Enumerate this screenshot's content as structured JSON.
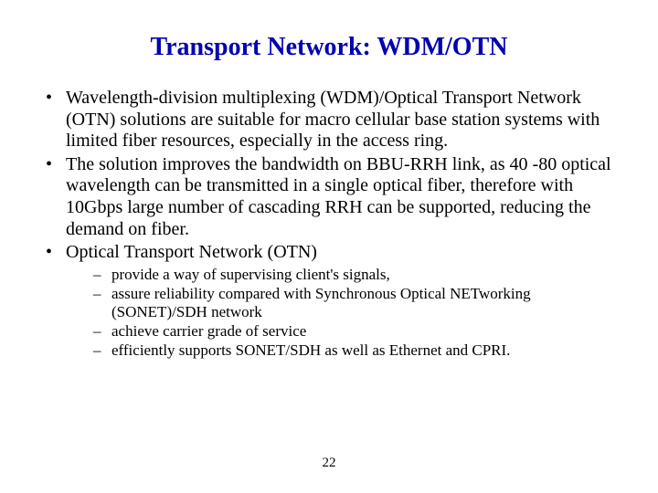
{
  "title": {
    "text": "Transport Network: WDM/OTN",
    "color": "#0000b0",
    "fontsize": 28
  },
  "body": {
    "color": "#000000",
    "fontsize": 20,
    "sub_fontsize": 17,
    "line_height": 1.18
  },
  "bullets": [
    "Wavelength-division multiplexing (WDM)/Optical Transport Network (OTN) solutions are suitable for macro cellular base station systems with limited fiber resources, especially in the access ring.",
    "The solution improves the bandwidth on BBU-RRH link, as 40 -80 optical wavelength can be transmitted in a single optical fiber, therefore with 10Gbps large number of cascading RRH can be supported, reducing the demand on fiber.",
    "Optical Transport Network (OTN)"
  ],
  "sub_bullets": [
    "provide a way of supervising client's signals,",
    "assure reliability compared with Synchronous Optical NETworking (SONET)/SDH network",
    "achieve carrier grade of service",
    "efficiently supports SONET/SDH as well as Ethernet and CPRI."
  ],
  "page_number": {
    "text": "22",
    "fontsize": 15,
    "color": "#000000"
  }
}
